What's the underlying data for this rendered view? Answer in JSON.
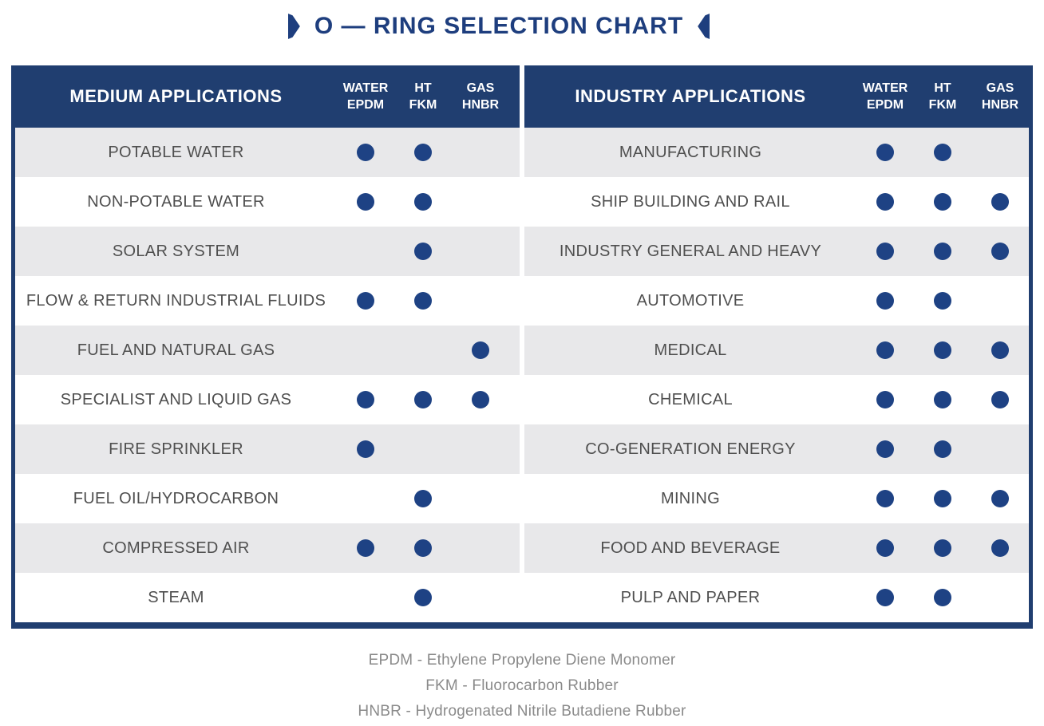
{
  "title": "O — RING SELECTION CHART",
  "colors": {
    "navy": "#203e70",
    "dot": "#1e4284",
    "title": "#1e3e7e",
    "row_alt": "#e8e8ea",
    "label": "#4f4f4f",
    "legend": "#8a8a8a"
  },
  "chart_data": [
    {
      "type": "table",
      "title": "MEDIUM APPLICATIONS",
      "columns": [
        {
          "line1": "WATER",
          "line2": "EPDM"
        },
        {
          "line1": "HT",
          "line2": "FKM"
        },
        {
          "line1": "GAS",
          "line2": "HNBR"
        }
      ],
      "rows": [
        {
          "label": "POTABLE WATER",
          "values": [
            1,
            1,
            0
          ]
        },
        {
          "label": "NON-POTABLE WATER",
          "values": [
            1,
            1,
            0
          ]
        },
        {
          "label": "SOLAR SYSTEM",
          "values": [
            0,
            1,
            0
          ]
        },
        {
          "label": "FLOW & RETURN INDUSTRIAL FLUIDS",
          "values": [
            1,
            1,
            0
          ]
        },
        {
          "label": "FUEL AND NATURAL GAS",
          "values": [
            0,
            0,
            1
          ]
        },
        {
          "label": "SPECIALIST AND LIQUID GAS",
          "values": [
            1,
            1,
            1
          ]
        },
        {
          "label": "FIRE SPRINKLER",
          "values": [
            1,
            0,
            0
          ]
        },
        {
          "label": "FUEL OIL/HYDROCARBON",
          "values": [
            0,
            1,
            0
          ]
        },
        {
          "label": "COMPRESSED AIR",
          "values": [
            1,
            1,
            0
          ]
        },
        {
          "label": "STEAM",
          "values": [
            0,
            1,
            0
          ]
        }
      ]
    },
    {
      "type": "table",
      "title": "INDUSTRY APPLICATIONS",
      "columns": [
        {
          "line1": "WATER",
          "line2": "EPDM"
        },
        {
          "line1": "HT",
          "line2": "FKM"
        },
        {
          "line1": "GAS",
          "line2": "HNBR"
        }
      ],
      "rows": [
        {
          "label": "MANUFACTURING",
          "values": [
            1,
            1,
            0
          ]
        },
        {
          "label": "SHIP BUILDING AND RAIL",
          "values": [
            1,
            1,
            1
          ]
        },
        {
          "label": "INDUSTRY GENERAL AND HEAVY",
          "values": [
            1,
            1,
            1
          ]
        },
        {
          "label": "AUTOMOTIVE",
          "values": [
            1,
            1,
            0
          ]
        },
        {
          "label": "MEDICAL",
          "values": [
            1,
            1,
            1
          ]
        },
        {
          "label": "CHEMICAL",
          "values": [
            1,
            1,
            1
          ]
        },
        {
          "label": "CO-GENERATION ENERGY",
          "values": [
            1,
            1,
            0
          ]
        },
        {
          "label": "MINING",
          "values": [
            1,
            1,
            1
          ]
        },
        {
          "label": "FOOD AND BEVERAGE",
          "values": [
            1,
            1,
            1
          ]
        },
        {
          "label": "PULP AND PAPER",
          "values": [
            1,
            1,
            0
          ]
        }
      ]
    }
  ],
  "legend": [
    "EPDM - Ethylene Propylene Diene Monomer",
    "FKM - Fluorocarbon Rubber",
    "HNBR - Hydrogenated Nitrile Butadiene Rubber"
  ]
}
